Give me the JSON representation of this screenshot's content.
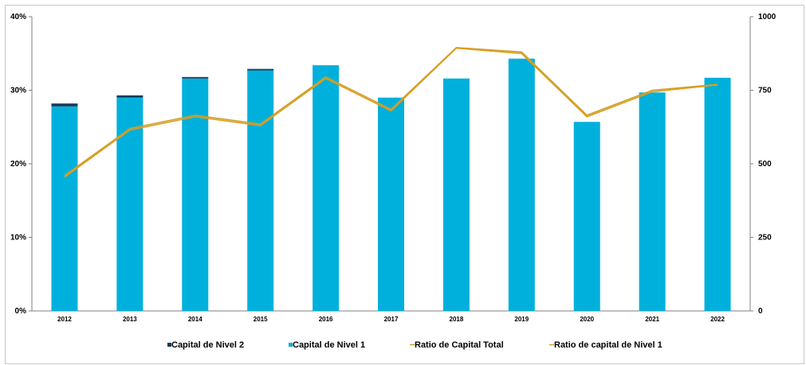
{
  "chart_data": {
    "type": "bar",
    "categories": [
      "2012",
      "2013",
      "2014",
      "2015",
      "2016",
      "2017",
      "2018",
      "2019",
      "2020",
      "2021",
      "2022"
    ],
    "series": [
      {
        "name": "Capital de Nivel 2",
        "type": "bar",
        "stack": "capital",
        "axis": "left",
        "color": "#1a3a5c",
        "values": [
          0.4,
          0.3,
          0.2,
          0.2,
          0.0,
          0.0,
          0.0,
          0.0,
          0.0,
          0.0,
          0.0
        ]
      },
      {
        "name": "Capital de Nivel 1",
        "type": "bar",
        "stack": "capital",
        "axis": "left",
        "color": "#00b0dc",
        "values": [
          27.8,
          29.0,
          31.6,
          32.7,
          33.4,
          29.0,
          31.6,
          34.3,
          25.7,
          29.7,
          31.7
        ]
      },
      {
        "name": "Ratio de Capital Total",
        "type": "line",
        "axis": "right",
        "color": "#c8a22e",
        "values": [
          460,
          620,
          665,
          635,
          795,
          685,
          895,
          880,
          665,
          750,
          770
        ]
      },
      {
        "name": "Ratio de capital de Nivel 1",
        "type": "line",
        "axis": "right",
        "color": "#e39b1a",
        "values": [
          455,
          615,
          660,
          630,
          790,
          680,
          893,
          875,
          660,
          745,
          768
        ]
      }
    ],
    "y_left": {
      "ticks": [
        "0%",
        "10%",
        "20%",
        "30%",
        "40%"
      ],
      "range": [
        0,
        40
      ]
    },
    "y_right": {
      "ticks": [
        "0",
        "250",
        "500",
        "750",
        "1000"
      ],
      "range": [
        0,
        1000
      ]
    },
    "grid": false,
    "legend_position": "bottom"
  }
}
